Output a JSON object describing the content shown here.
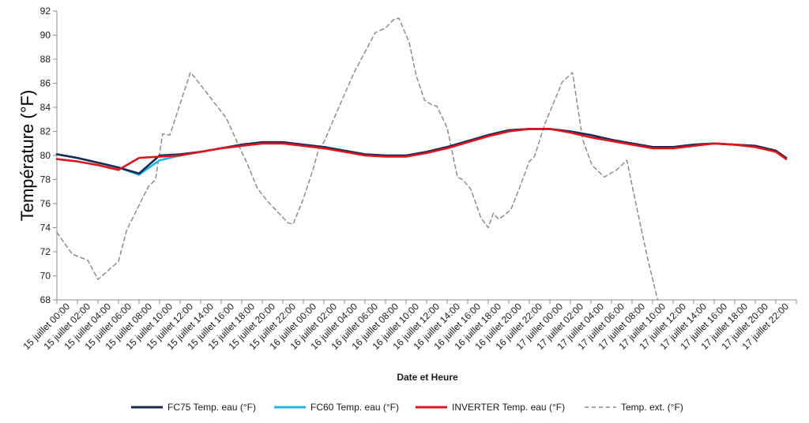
{
  "chart_data": {
    "type": "line",
    "title": "",
    "xlabel": "Date et Heure",
    "ylabel": "Température (°F)",
    "ylim": [
      68,
      92
    ],
    "yticks": [
      68,
      70,
      72,
      74,
      76,
      78,
      80,
      82,
      84,
      86,
      88,
      90,
      92
    ],
    "grid": false,
    "legend": "bottom",
    "x_tick_labels": [
      "15 juillet 00:00",
      "15 juillet 02:00",
      "15 juillet 04:00",
      "15 juillet 06:00",
      "15 juillet 08:00",
      "15 juillet 10:00",
      "15 juillet 12:00",
      "15 juillet 14:00",
      "15 juillet 16:00",
      "15 juillet 18:00",
      "15 juillet 20:00",
      "15 juillet 22:00",
      "16 juillet 00:00",
      "16 juillet 02:00",
      "16 juillet 04:00",
      "16 juillet 06:00",
      "16 juillet 08:00",
      "16 juillet 10:00",
      "16 juillet 12:00",
      "16 juillet 14:00",
      "16 juillet 16:00",
      "16 juillet 18:00",
      "16 juillet 20:00",
      "16 juillet 22:00",
      "17 juillet 00:00",
      "17 juillet 02:00",
      "17 juillet 04:00",
      "17 juillet 06:00",
      "17 juillet 08:00",
      "17 juillet 10:00",
      "17 juillet 12:00",
      "17 juillet 14:00",
      "17 juillet 16:00",
      "17 juillet 18:00",
      "17 juillet 20:00",
      "17 juillet 22:00"
    ],
    "x_hours": [
      0,
      2,
      4,
      6,
      8,
      10,
      12,
      14,
      16,
      18,
      20,
      22,
      24,
      26,
      28,
      30,
      32,
      34,
      36,
      38,
      40,
      42,
      44,
      46,
      48,
      50,
      52,
      54,
      56,
      58,
      60,
      62,
      64,
      66,
      68,
      70,
      71
    ],
    "series": [
      {
        "name": "FC75 Temp. eau (°F)",
        "color": "#1b2a52",
        "dash": "solid",
        "values": [
          80.1,
          79.8,
          79.4,
          79.0,
          78.5,
          80.0,
          80.1,
          80.3,
          80.6,
          80.9,
          81.1,
          81.1,
          80.9,
          80.7,
          80.4,
          80.1,
          80.0,
          80.0,
          80.3,
          80.7,
          81.2,
          81.7,
          82.1,
          82.2,
          82.2,
          82.0,
          81.7,
          81.3,
          81.0,
          80.7,
          80.7,
          80.9,
          81.0,
          80.9,
          80.8,
          80.4,
          79.8
        ]
      },
      {
        "name": "FC60 Temp. eau (°F)",
        "color": "#1fb4ea",
        "dash": "solid",
        "values": [
          80.1,
          79.8,
          79.4,
          79.0,
          78.4,
          79.6,
          80.0,
          80.3,
          80.6,
          80.9,
          81.1,
          81.1,
          80.9,
          80.7,
          80.4,
          80.1,
          80.0,
          80.0,
          80.3,
          80.7,
          81.2,
          81.7,
          82.1,
          82.2,
          82.2,
          82.0,
          81.7,
          81.3,
          81.0,
          80.7,
          80.7,
          80.9,
          81.0,
          80.9,
          80.8,
          80.4,
          79.8
        ]
      },
      {
        "name": "INVERTER Temp. eau (°F)",
        "color": "#e0141e",
        "dash": "solid",
        "values": [
          79.7,
          79.5,
          79.2,
          78.8,
          79.8,
          79.9,
          80.0,
          80.3,
          80.6,
          80.8,
          81.0,
          81.0,
          80.8,
          80.6,
          80.3,
          80.0,
          79.9,
          79.9,
          80.2,
          80.6,
          81.1,
          81.6,
          82.0,
          82.2,
          82.2,
          81.9,
          81.5,
          81.2,
          80.9,
          80.6,
          80.6,
          80.8,
          81.0,
          80.9,
          80.7,
          80.3,
          79.7
        ]
      },
      {
        "name": "Temp. ext. (°F)",
        "color": "#8c8c8c",
        "dash": "dashed",
        "values": [
          73.6,
          71.8,
          71.3,
          69.7,
          71.2,
          73.8,
          77.4,
          78.0,
          81.8,
          81.7,
          86.9,
          86.4,
          85.3,
          84.2,
          83.1,
          81.2,
          79.4,
          77.3,
          76.2,
          75.3,
          74.4,
          74.3,
          76.4,
          79.0,
          80.6,
          81.1,
          84.1,
          87.0,
          90.2,
          90.6,
          91.3,
          91.4,
          89.4,
          86.6,
          84.6,
          84.2,
          84.1,
          82.3,
          78.2,
          78.0,
          77.2,
          74.8,
          74.0,
          75.2,
          74.7,
          75.0,
          75.5,
          77.2,
          79.5,
          79.9,
          82.6,
          86.1,
          86.9,
          81.3,
          79.2,
          78.2,
          78.8,
          79.6,
          75.5,
          71.5,
          68.0
        ],
        "x_hours": [
          0,
          1.5,
          3,
          4,
          6,
          6.8,
          8.9,
          9.6,
          10.3,
          11,
          13,
          13.5,
          14.5,
          15.5,
          16.5,
          17.5,
          18.5,
          19.5,
          20.5,
          21.5,
          22.5,
          23,
          24,
          25,
          25.5,
          26,
          27.5,
          29,
          31,
          32,
          32.8,
          33.3,
          34.3,
          35,
          35.8,
          36.5,
          37,
          38,
          39,
          39.5,
          40.3,
          41.3,
          42,
          42.5,
          43,
          43.5,
          44.2,
          45,
          46,
          46.5,
          47.5,
          49.2,
          50.2,
          51.2,
          52.1,
          53.3,
          54.5,
          55.5,
          56.5,
          57.5,
          58.5
        ]
      }
    ]
  }
}
